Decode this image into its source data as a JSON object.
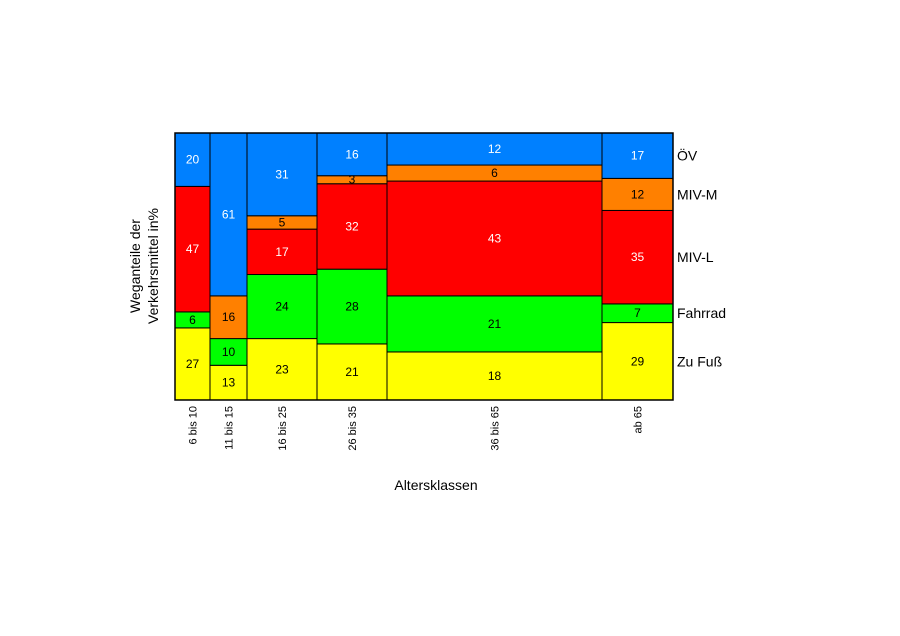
{
  "chart_data": {
    "type": "mosaic",
    "ylabel_lines": [
      "Weganteile der",
      "Verkehrsmittel in%"
    ],
    "xlabel": "Altersklassen",
    "categories": [
      "6 bis 10",
      "11 bis 15",
      "16 bis 25",
      "26 bis 35",
      "36 bis 65",
      "ab 65"
    ],
    "series": [
      {
        "name": "Zu Fuß",
        "color": "#ffff00",
        "text_color": "#000000",
        "values": [
          27,
          13,
          23,
          21,
          18,
          29
        ]
      },
      {
        "name": "Fahrrad",
        "color": "#00ff00",
        "text_color": "#000000",
        "values": [
          6,
          10,
          24,
          28,
          21,
          7
        ]
      },
      {
        "name": "MIV-L",
        "color": "#ff0000",
        "text_color": "#ffffff",
        "values": [
          47,
          0,
          17,
          32,
          43,
          35
        ]
      },
      {
        "name": "MIV-M",
        "color": "#ff8000",
        "text_color": "#000000",
        "values": [
          0,
          16,
          5,
          3,
          6,
          12
        ]
      },
      {
        "name": "ÖV",
        "color": "#0080ff",
        "text_color": "#ffffff",
        "values": [
          20,
          61,
          31,
          16,
          12,
          17
        ]
      }
    ],
    "colors": {
      "border": "#000000",
      "background": "#ffffff"
    }
  }
}
